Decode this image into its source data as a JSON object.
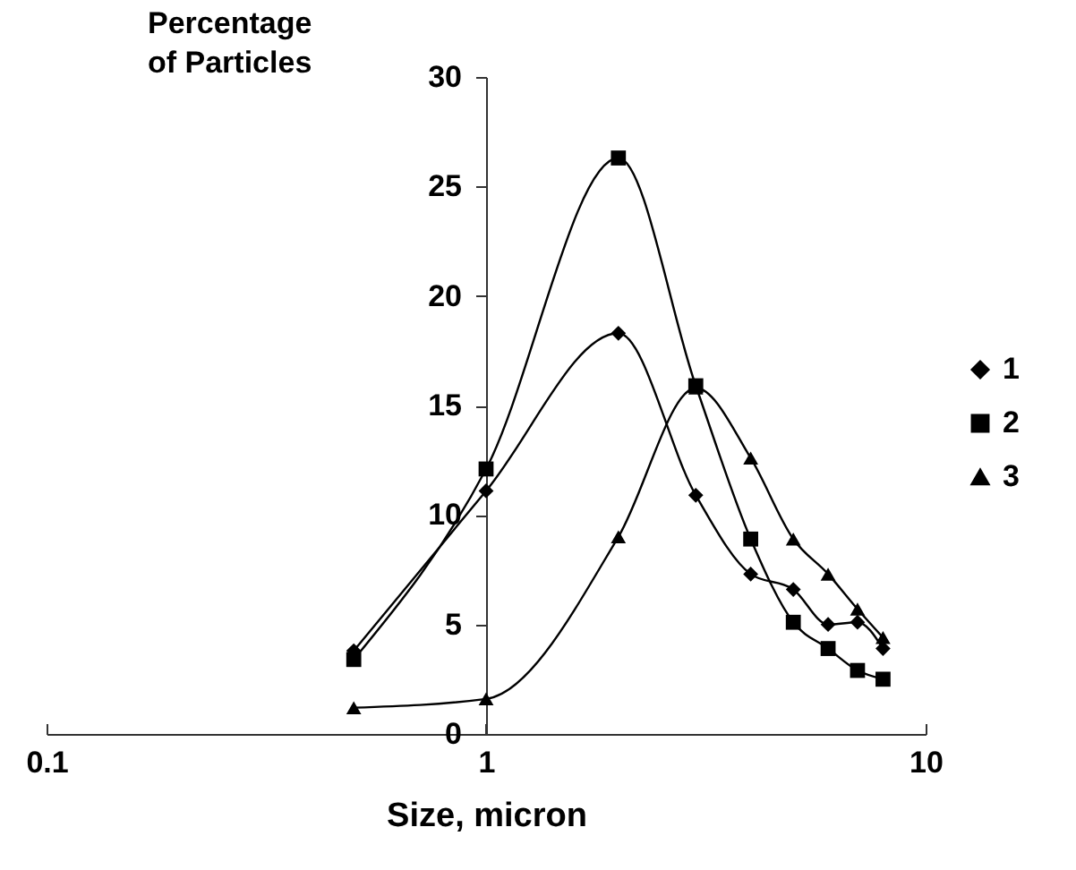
{
  "chart_data": {
    "type": "line",
    "xlabel": "Size, micron",
    "ylabel": "Percentage of Particles",
    "x": [
      0.5,
      1,
      2,
      3,
      4,
      5,
      6,
      7,
      8
    ],
    "series": [
      {
        "name": "1",
        "color": "#000000",
        "marker": "diamond",
        "values": [
          3.8,
          11.1,
          18.3,
          10.9,
          7.3,
          6.6,
          5.0,
          5.1,
          3.9
        ]
      },
      {
        "name": "2",
        "color": "#000000",
        "marker": "square",
        "values": [
          3.4,
          12.1,
          26.3,
          15.9,
          8.9,
          5.1,
          3.9,
          2.9,
          2.5
        ]
      },
      {
        "name": "3",
        "color": "#000000",
        "marker": "triangle",
        "values": [
          1.2,
          1.6,
          9.0,
          15.8,
          12.6,
          8.9,
          7.3,
          5.7,
          4.4
        ]
      }
    ],
    "log": "x",
    "xlim": [
      0.1,
      10
    ],
    "xticks": [
      0.1,
      1,
      10
    ],
    "ylim": [
      0,
      30
    ],
    "yticks": [
      0,
      5,
      10,
      15,
      20,
      25,
      30
    ],
    "grid": false,
    "legend": "right",
    "line_style": "solid"
  }
}
